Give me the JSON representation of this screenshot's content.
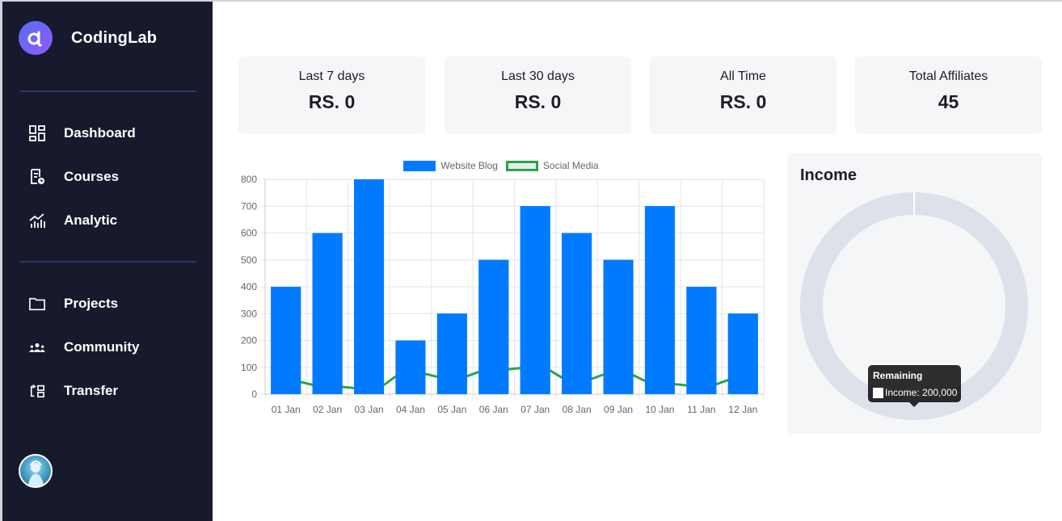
{
  "brand": {
    "name": "CodingLab"
  },
  "sidebar": {
    "items": [
      {
        "label": "Dashboard",
        "icon": "dashboard-icon"
      },
      {
        "label": "Courses",
        "icon": "courses-icon"
      },
      {
        "label": "Analytic",
        "icon": "analytic-icon"
      },
      {
        "label": "Projects",
        "icon": "folder-icon"
      },
      {
        "label": "Community",
        "icon": "community-icon"
      },
      {
        "label": "Transfer",
        "icon": "transfer-icon"
      }
    ]
  },
  "cards": [
    {
      "label": "Last 7 days",
      "value": "RS. 0"
    },
    {
      "label": "Last 30 days",
      "value": "RS. 0"
    },
    {
      "label": "All Time",
      "value": "RS. 0"
    },
    {
      "label": "Total Affiliates",
      "value": "45"
    }
  ],
  "income": {
    "title": "Income",
    "tooltip_title": "Remaining",
    "tooltip_body": "Income: 200,000"
  },
  "colors": {
    "sidebar_bg": "#161a2c",
    "bar_blue": "#007bff",
    "line_green": "#28a745",
    "doughnut_gray": "#dde1ea"
  },
  "chart_data": [
    {
      "type": "bar",
      "categories": [
        "01 Jan",
        "02 Jan",
        "03 Jan",
        "04 Jan",
        "05 Jan",
        "06 Jan",
        "07 Jan",
        "08 Jan",
        "09 Jan",
        "10 Jan",
        "11 Jan",
        "12 Jan"
      ],
      "series": [
        {
          "name": "Website Blog",
          "type": "bar",
          "color": "#007bff",
          "values": [
            400,
            600,
            800,
            200,
            300,
            500,
            700,
            600,
            500,
            700,
            400,
            300
          ]
        },
        {
          "name": "Social Media",
          "type": "line",
          "color": "#28a745",
          "values": [
            50,
            30,
            20,
            80,
            60,
            90,
            100,
            50,
            80,
            40,
            30,
            60
          ]
        }
      ],
      "ylim": [
        0,
        800
      ],
      "yticks": [
        0,
        100,
        200,
        300,
        400,
        500,
        600,
        700,
        800
      ],
      "grid": true,
      "legend": "top"
    },
    {
      "type": "pie",
      "variant": "doughnut",
      "title": "Income",
      "slices": [
        {
          "label": "Remaining",
          "value": 200000,
          "color": "#dde1ea"
        }
      ]
    }
  ]
}
